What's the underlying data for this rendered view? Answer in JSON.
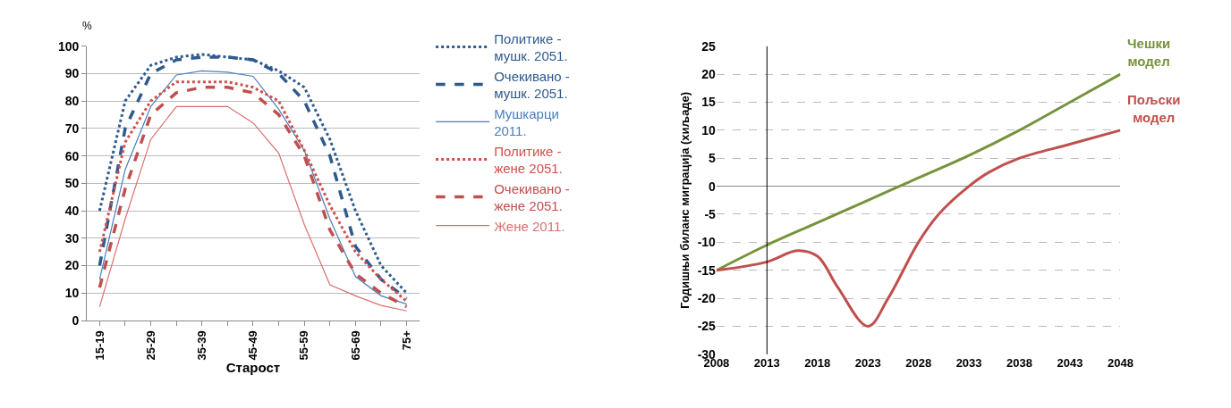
{
  "chart_data": [
    {
      "type": "line",
      "xlabel": "Старост",
      "ylabel": "%",
      "categories": [
        "15-19",
        null,
        "25-29",
        null,
        "35-39",
        null,
        "45-49",
        null,
        "55-59",
        null,
        "65-69",
        null,
        "75+"
      ],
      "ylim": [
        0,
        100
      ],
      "yticks": [
        0,
        10,
        20,
        30,
        40,
        50,
        60,
        70,
        80,
        90,
        100
      ],
      "grid": "y",
      "legend": "right",
      "series": [
        {
          "name": "Политике - мушк. 2051.",
          "color": "#2e5a8e",
          "line_style": "dotted",
          "values": [
            40,
            80,
            93,
            96,
            97,
            96,
            95,
            91,
            85,
            66,
            40,
            20,
            10
          ]
        },
        {
          "name": "Очекивано - мушк. 2051.",
          "color": "#2e5a8e",
          "line_style": "dashed",
          "values": [
            20,
            70,
            90,
            95,
            96,
            96,
            95,
            90,
            80,
            60,
            27,
            15,
            8
          ]
        },
        {
          "name": "Мушкарци 2011.",
          "color": "#4a7ebb",
          "line_style": "solid",
          "values": [
            15,
            55,
            78,
            89.5,
            91,
            90.5,
            89,
            77,
            62,
            37,
            16,
            9,
            6
          ]
        },
        {
          "name": "Политике - жене 2051.",
          "color": "#d0504d",
          "line_style": "dotted",
          "values": [
            25,
            65,
            80,
            87,
            87,
            87,
            85,
            80,
            62,
            42,
            25,
            15,
            7
          ]
        },
        {
          "name": "Очекивано - жене 2051.",
          "color": "#c0504d",
          "line_style": "dashed",
          "values": [
            12,
            48,
            75,
            83,
            85,
            85,
            83,
            75,
            60,
            33,
            17,
            10,
            5
          ]
        },
        {
          "name": "Жене 2011.",
          "color": "#d9706d",
          "line_style": "solid",
          "values": [
            5,
            37,
            66,
            78,
            78,
            78,
            72,
            61,
            35,
            13,
            9,
            5.5,
            3.5
          ]
        }
      ]
    },
    {
      "type": "line",
      "ylabel": "Годишњи биланс миграција (хиљаде)",
      "xlim": [
        2008,
        2048
      ],
      "xticks": [
        2008,
        2013,
        2018,
        2023,
        2028,
        2033,
        2038,
        2043,
        2048
      ],
      "ylim": [
        -30,
        25
      ],
      "yticks": [
        -30,
        -25,
        -20,
        -15,
        -10,
        -5,
        0,
        5,
        10,
        15,
        20,
        25
      ],
      "grid": "y",
      "legend": false,
      "ref_lines": [
        {
          "axis": "x",
          "value": 2013,
          "color": "#000000"
        }
      ],
      "series": [
        {
          "name": "Чешки модел",
          "color": "#77933c",
          "x": [
            2008,
            2013,
            2018,
            2023,
            2028,
            2033,
            2038,
            2043,
            2048
          ],
          "values": [
            -15,
            -10.5,
            -6.5,
            -2.5,
            1.5,
            5.5,
            10,
            15,
            20
          ]
        },
        {
          "name": "Пољски модел",
          "color": "#c0504d",
          "x": [
            2008,
            2013,
            2016,
            2018,
            2020,
            2023,
            2025,
            2028,
            2030,
            2033,
            2035,
            2038,
            2043,
            2048
          ],
          "values": [
            -15,
            -13.5,
            -11.5,
            -12.5,
            -18,
            -25,
            -20,
            -10,
            -5,
            0,
            2.5,
            5,
            7.5,
            10
          ]
        }
      ]
    }
  ]
}
